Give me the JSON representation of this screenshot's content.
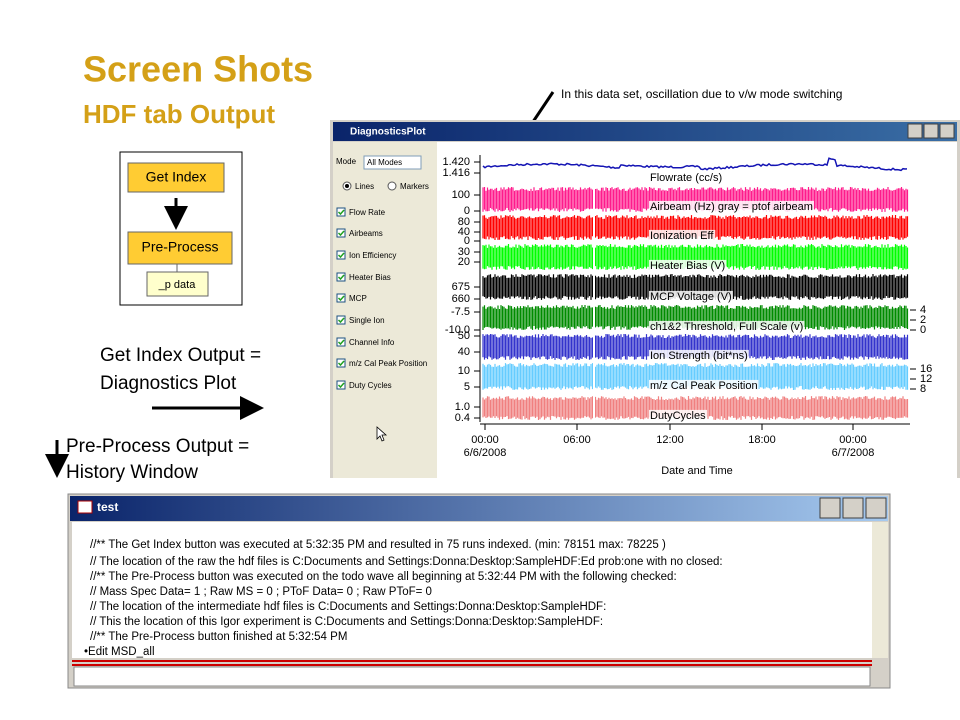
{
  "slide": {
    "title": "Screen Shots",
    "subtitle": "HDF tab Output",
    "annotation": "In this data set, oscillation due to v/w mode switching"
  },
  "diagram": {
    "boxes": [
      "Get Index",
      "Pre-Process",
      "_p data"
    ],
    "notes": [
      [
        "Get Index Output =",
        "Diagnostics Plot"
      ],
      [
        "Pre-Process Output =",
        "History Window"
      ]
    ]
  },
  "diagnostics_window": {
    "title": "DiagnosticsPlot",
    "mode_label": "Mode",
    "mode_value": "All Modes",
    "radios": [
      "Lines",
      "Markers"
    ],
    "checkboxes": [
      "Flow Rate",
      "Airbeams",
      "Ion Efficiency",
      "Heater Bias",
      "MCP",
      "Single Ion",
      "Channel Info",
      "m/z Cal Peak Position",
      "Duty Cycles"
    ],
    "traces": [
      {
        "label": "Flowrate (cc/s)",
        "ticks": [
          "1.420",
          "1.416"
        ]
      },
      {
        "label": "Airbeam (Hz) gray = ptof airbeam",
        "ticks": [
          "100",
          "0"
        ]
      },
      {
        "label": "Ionization Eff",
        "ticks": [
          "80",
          "40",
          "0"
        ]
      },
      {
        "label": "Heater Bias (V)",
        "ticks": [
          "30",
          "20"
        ]
      },
      {
        "label": "MCP Voltage (V)",
        "ticks": [
          "675",
          "660"
        ]
      },
      {
        "label": "ch1&2 Threshold, Full Scale (v)",
        "ticks": [
          "-7.5",
          "-10.0"
        ],
        "right_ticks": [
          "4",
          "2",
          "0"
        ]
      },
      {
        "label": "Ion Strength (bit*ns)",
        "ticks": [
          "50",
          "40"
        ]
      },
      {
        "label": "m/z Cal Peak Position",
        "ticks": [
          "10",
          "5"
        ],
        "right_ticks": [
          "16",
          "12",
          "8"
        ]
      },
      {
        "label": "DutyCycles",
        "ticks": [
          "1.0",
          "0.4"
        ]
      }
    ],
    "x_ticks": [
      {
        "time": "00:00",
        "date": "6/6/2008"
      },
      {
        "time": "06:00"
      },
      {
        "time": "12:00"
      },
      {
        "time": "18:00"
      },
      {
        "time": "00:00",
        "date": "6/7/2008"
      }
    ],
    "x_label": "Date and Time"
  },
  "history_window": {
    "title": "test",
    "lines": [
      "//** The Get Index button was executed at  5:32:35 PM  and resulted in  75  runs indexed.  (min:  78151  max:  78225  )",
      "// The location of the raw the hdf files is   C:Documents and Settings:Donna:Desktop:SampleHDF:Ed prob:one with no closed:",
      "//** The Pre-Process button was executed on the todo wave all beginning at  5:32:44 PM  with the following checked:",
      "//     Mass Spec Data=  1  ; Raw MS =  0  ; PToF Data=  0  ; Raw PToF=  0",
      "// The location of the intermediate hdf files is   C:Documents and Settings:Donna:Desktop:SampleHDF:",
      "// This the location of this Igor experiment is   C:Documents and Settings:Donna:Desktop:SampleHDF:",
      "//** The Pre-Process button finished at  5:32:54 PM",
      "•Edit MSD_all"
    ]
  }
}
